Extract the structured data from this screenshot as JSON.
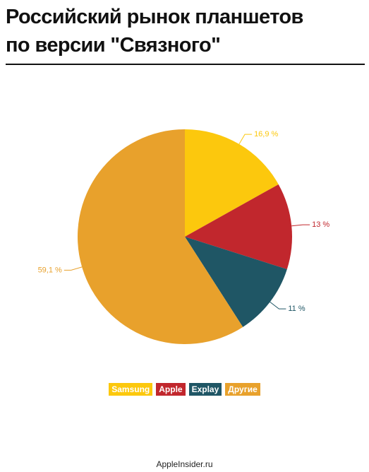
{
  "chart_data": {
    "type": "pie",
    "title": [
      "Российский рынок планшетов",
      "по версии \"Связного\""
    ],
    "categories": [
      "Samsung",
      "Apple",
      "Explay",
      "Другие"
    ],
    "values": [
      16.9,
      13,
      11,
      59.1
    ],
    "value_labels": [
      "16,9 %",
      "13 %",
      "11 %",
      "59,1 %"
    ],
    "colors": [
      "#fcc80d",
      "#c1272d",
      "#1f5665",
      "#e8a12c"
    ],
    "source": "AppleInsider.ru"
  }
}
